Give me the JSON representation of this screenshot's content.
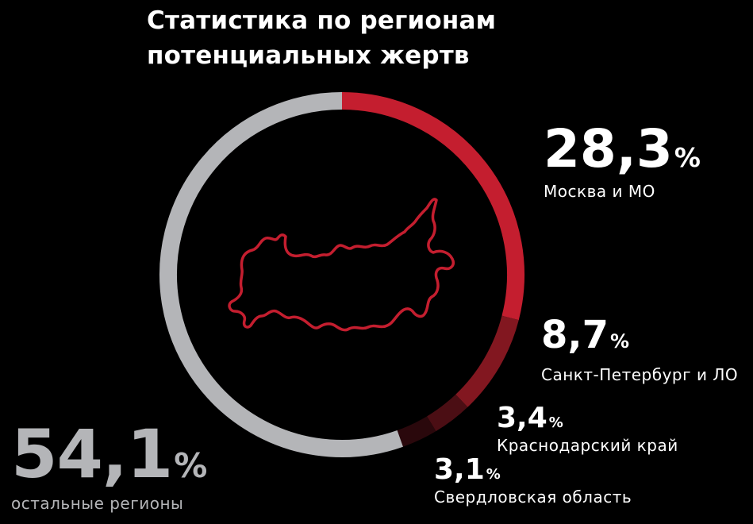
{
  "title_line1": "Статистика по регионам",
  "title_line2": "потенциальных жертв",
  "chart_data": {
    "type": "pie",
    "title": "Статистика по регионам потенциальных жертв",
    "unit": "%",
    "slices": [
      {
        "value": "28,3",
        "num": 28.3,
        "label": "Москва и МО",
        "color": "#c41e2f"
      },
      {
        "value": "8,7",
        "num": 8.7,
        "label": "Санкт-Петербург и ЛО",
        "color": "#821720"
      },
      {
        "value": "3,4",
        "num": 3.4,
        "label": "Краснодарский край",
        "color": "#4b0e14"
      },
      {
        "value": "3,1",
        "num": 3.1,
        "label": "Свердловская область",
        "color": "#2a080c"
      },
      {
        "value": "54,1",
        "num": 54.1,
        "label": "остальные регионы",
        "color": "#b4b5b8"
      }
    ]
  },
  "colors": {
    "background": "#000000",
    "map_outline": "#c41e2f"
  },
  "icons": {
    "center": "russia-map-outline-icon"
  }
}
